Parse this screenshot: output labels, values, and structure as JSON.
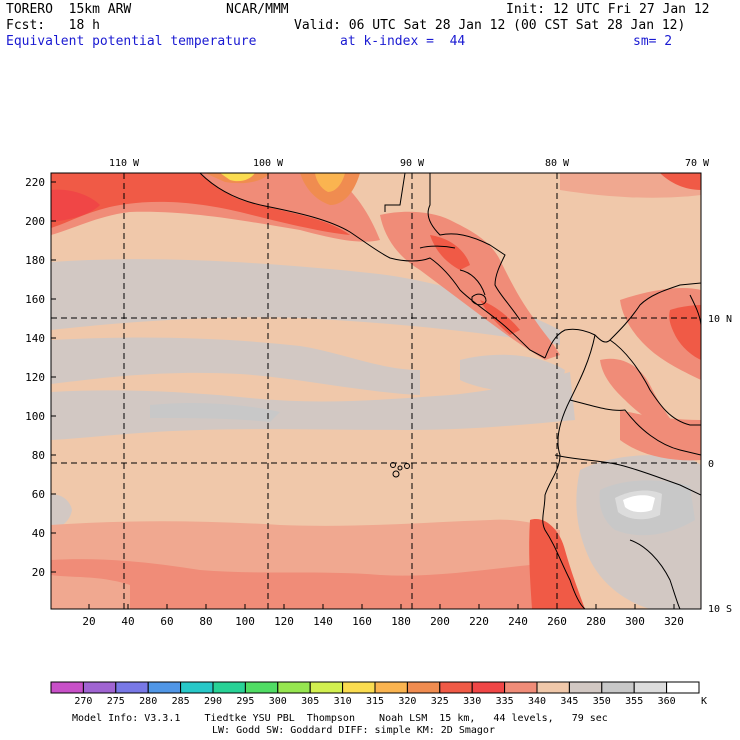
{
  "header": {
    "model": "TORERO  15km ARW",
    "center": "NCAR/MMM",
    "init": "Init: 12 UTC Fri 27 Jan 12",
    "fcst": "Fcst:   18 h",
    "valid": "Valid: 06 UTC Sat 28 Jan 12 (00 CST Sat 28 Jan 12)",
    "field": "Equivalent potential temperature",
    "level": "at k-index =  44",
    "smoothing": "sm= 2"
  },
  "map": {
    "top_lon_labels": [
      "110 W",
      "100 W",
      "90 W",
      "80 W",
      "70 W"
    ],
    "right_lat_labels": [
      "10 N",
      "0",
      "10 S"
    ],
    "y_ticks": [
      "220",
      "200",
      "180",
      "160",
      "140",
      "120",
      "100",
      "80",
      "60",
      "40",
      "20"
    ],
    "x_ticks": [
      "20",
      "40",
      "60",
      "80",
      "100",
      "120",
      "140",
      "160",
      "180",
      "200",
      "220",
      "240",
      "260",
      "280",
      "300",
      "320"
    ]
  },
  "colorbar": {
    "unit": "K",
    "labels": [
      "270",
      "275",
      "280",
      "285",
      "290",
      "295",
      "300",
      "305",
      "310",
      "315",
      "320",
      "325",
      "330",
      "335",
      "340",
      "345",
      "350",
      "355",
      "360"
    ],
    "colors": [
      "#c850c8",
      "#a064d2",
      "#7878e6",
      "#5096e6",
      "#28c8c8",
      "#28d296",
      "#50dc64",
      "#96e650",
      "#d2f050",
      "#fadc50",
      "#fab450",
      "#f08c50",
      "#f05a46",
      "#f04646",
      "#f08c78",
      "#f0c8aa",
      "#d2c8c3",
      "#c8c8c8",
      "#dcdcdc",
      "#ffffff"
    ]
  },
  "footer": {
    "line1": "Model Info: V3.3.1    Tiedtke YSU PBL  Thompson    Noah LSM  15 km,   44 levels,   79 sec",
    "line2": "LW: Godd SW: Goddard DIFF: simple KM: 2D Smagor"
  }
}
